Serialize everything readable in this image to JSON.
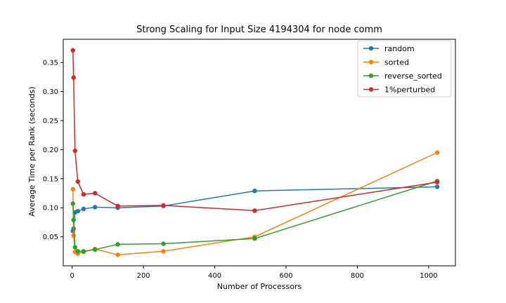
{
  "chart_data": {
    "type": "line",
    "title": "Strong Scaling for Input Size 4194304 for node comm",
    "xlabel": "Number of Processors",
    "ylabel": "Average Time per Rank (seconds)",
    "xlim": [
      -25,
      1075
    ],
    "ylim": [
      0.0,
      0.39
    ],
    "xticks": [
      0,
      200,
      400,
      600,
      800,
      1000
    ],
    "yticks": [
      0.05,
      0.1,
      0.15,
      0.2,
      0.25,
      0.3,
      0.35
    ],
    "xtick_labels": [
      "0",
      "200",
      "400",
      "600",
      "800",
      "1000"
    ],
    "ytick_labels": [
      "0.05",
      "0.10",
      "0.15",
      "0.20",
      "0.25",
      "0.30",
      "0.35"
    ],
    "grid": false,
    "legend_position": "top-right",
    "x": [
      2,
      4,
      8,
      16,
      32,
      64,
      128,
      256,
      512,
      1024
    ],
    "series": [
      {
        "name": "random",
        "color": "#1f77b4",
        "values": [
          0.06,
          0.064,
          0.092,
          0.094,
          0.098,
          0.101,
          0.1,
          0.103,
          0.129,
          0.136
        ]
      },
      {
        "name": "sorted",
        "color": "#ff7f0e",
        "values": [
          0.132,
          0.052,
          0.024,
          0.021,
          0.024,
          0.029,
          0.019,
          0.025,
          0.05,
          0.195
        ]
      },
      {
        "name": "reverse_sorted",
        "color": "#2ca02c",
        "values": [
          0.107,
          0.079,
          0.032,
          0.025,
          0.025,
          0.028,
          0.037,
          0.038,
          0.047,
          0.146
        ]
      },
      {
        "name": "1%perturbed",
        "color": "#d62728",
        "values": [
          0.371,
          0.324,
          0.198,
          0.145,
          0.123,
          0.125,
          0.103,
          0.104,
          0.095,
          0.144
        ]
      }
    ]
  }
}
